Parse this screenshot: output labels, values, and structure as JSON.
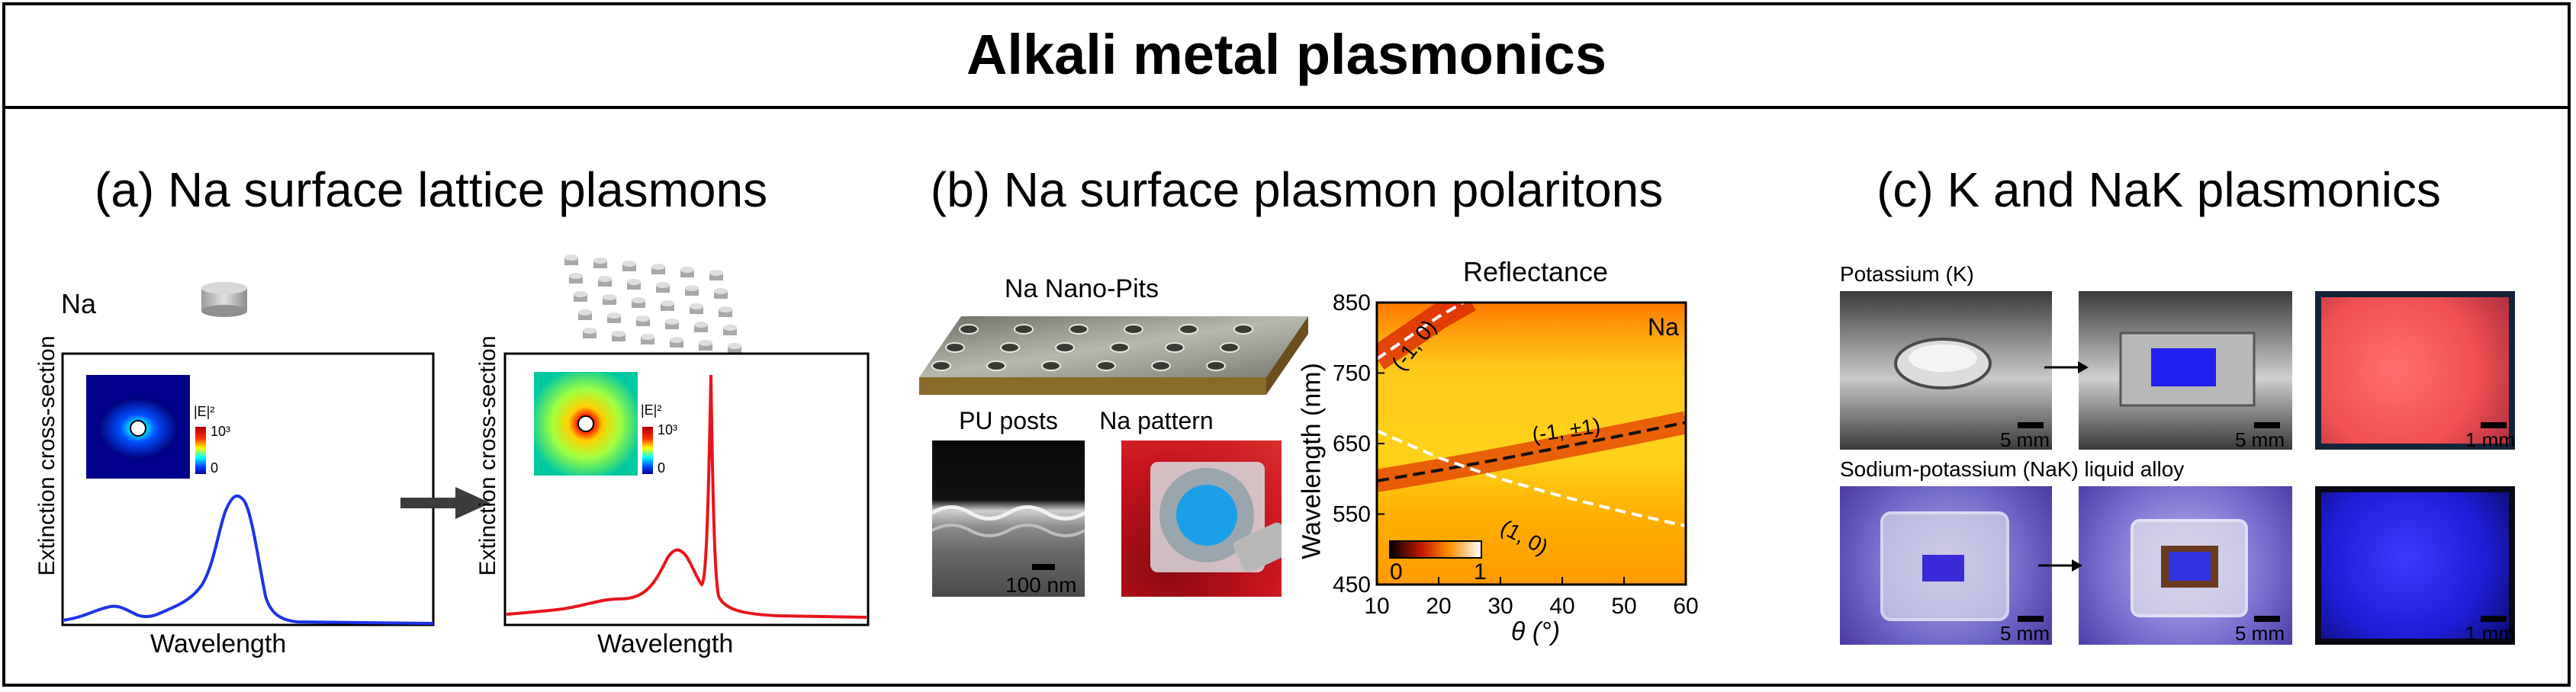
{
  "title": "Alkali metal plasmonics",
  "panel_a": {
    "title": "(a) Na surface lattice plasmons",
    "na_label": "Na",
    "chart_left": {
      "ylabel": "Extinction cross-section",
      "xlabel": "Wavelength",
      "inset_legend_label": "|E|²",
      "inset_max": "10³",
      "inset_min": "0"
    },
    "chart_right": {
      "ylabel": "Extinction cross-section",
      "xlabel": "Wavelength",
      "inset_legend_label": "|E|²",
      "inset_max": "10³",
      "inset_min": "0"
    }
  },
  "panel_b": {
    "title": "(b) Na surface plasmon polaritons",
    "nanopits_label": "Na Nano-Pits",
    "pu_posts_label": "PU posts",
    "na_pattern_label": "Na pattern",
    "sem_scale": "100 nm",
    "heatmap": {
      "title": "Reflectance",
      "ylabel": "Wavelength (nm)",
      "xlabel": "θ (°)",
      "corner_label": "Na",
      "colorbar_min": "0",
      "colorbar_max": "1",
      "curve_labels": [
        "(-1, 0)",
        "(-1, ±1)",
        "(1, 0)"
      ]
    }
  },
  "panel_c": {
    "title": "(c) K and NaK plasmonics",
    "row1_label": "Potassium (K)",
    "row2_label": "Sodium-potassium (NaK) liquid alloy",
    "scales": [
      "5 mm",
      "5 mm",
      "1 mm",
      "5 mm",
      "5 mm",
      "1 mm"
    ]
  },
  "chart_data": {
    "type": "heatmap",
    "title": "Reflectance",
    "xlabel": "θ (°)",
    "ylabel": "Wavelength (nm)",
    "xlim": [
      10,
      60
    ],
    "ylim": [
      450,
      850
    ],
    "x_ticks": [
      "10",
      "20",
      "30",
      "40",
      "50",
      "60"
    ],
    "y_ticks": [
      "450",
      "550",
      "650",
      "750",
      "850"
    ],
    "colorbar": [
      0,
      1
    ],
    "curves": [
      {
        "name": "(-1, 0)",
        "x": [
          10,
          15,
          20,
          25
        ],
        "y": [
          770,
          800,
          830,
          855
        ]
      },
      {
        "name": "(-1, ±1)",
        "x": [
          10,
          20,
          30,
          40,
          50,
          60
        ],
        "y": [
          597,
          612,
          628,
          645,
          662,
          680
        ]
      },
      {
        "name": "(1, 0)",
        "x": [
          10,
          20,
          30,
          40,
          50,
          60
        ],
        "y": [
          668,
          630,
          600,
          575,
          553,
          533
        ]
      }
    ],
    "colors": {
      "high": "#ffd21a",
      "mid": "#ff8a00",
      "low": "#c41800"
    }
  }
}
